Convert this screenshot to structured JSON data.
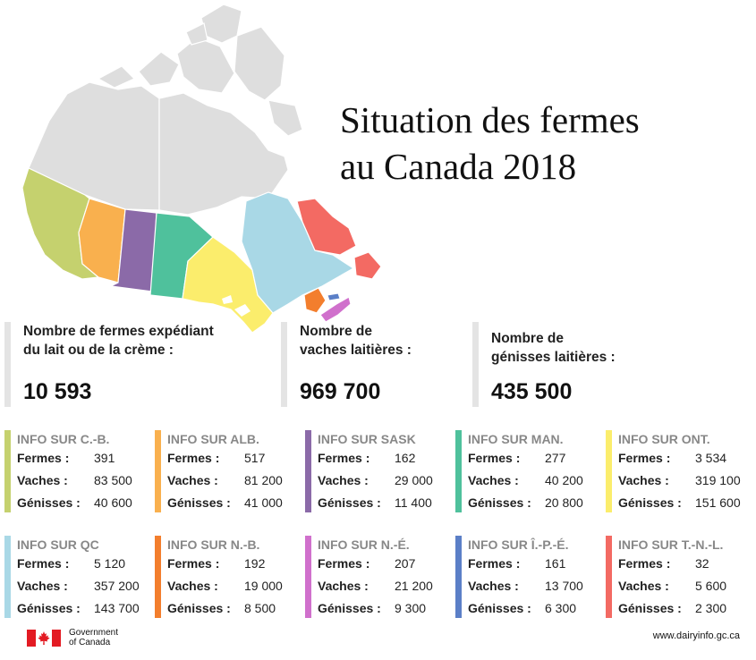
{
  "title_line1": "Situation des fermes",
  "title_line2": "au Canada 2018",
  "stats": [
    {
      "label_line1": "Nombre de fermes expédiant",
      "label_line2": "du lait ou de la crème :",
      "value": "10 593"
    },
    {
      "label_line1": "Nombre de",
      "label_line2": "vaches laitières :",
      "value": "969 700"
    },
    {
      "label_line1": "Nombre de",
      "label_line2": "génisses laitières :",
      "value": "435 500"
    }
  ],
  "row_labels": {
    "farms": "Fermes :",
    "cows": "Vaches :",
    "heifers": "Génisses :"
  },
  "provinces": [
    {
      "heading": "INFO SUR C.-B.",
      "farms": "391",
      "cows": "83 500",
      "heifers": "40 600",
      "color": "#c5d16e"
    },
    {
      "heading": "INFO SUR ALB.",
      "farms": "517",
      "cows": "81 200",
      "heifers": "41 000",
      "color": "#f9b04e"
    },
    {
      "heading": "INFO SUR SASK",
      "farms": "162",
      "cows": "29 000",
      "heifers": "11 400",
      "color": "#8b6aa8"
    },
    {
      "heading": "INFO SUR MAN.",
      "farms": "277",
      "cows": "40 200",
      "heifers": "20 800",
      "color": "#4fc19c"
    },
    {
      "heading": "INFO SUR ONT.",
      "farms": "3 534",
      "cows": "319 100",
      "heifers": "151 600",
      "color": "#fbed6c"
    },
    {
      "heading": "INFO SUR QC",
      "farms": "5 120",
      "cows": "357 200",
      "heifers": "143 700",
      "color": "#a9d8e6"
    },
    {
      "heading": "INFO SUR N.-B.",
      "farms": "192",
      "cows": "19 000",
      "heifers": "8 500",
      "color": "#f37e2d"
    },
    {
      "heading": "INFO SUR N.-É.",
      "farms": "207",
      "cows": "21 200",
      "heifers": "9 300",
      "color": "#d070cc"
    },
    {
      "heading": "INFO SUR Î.-P.-É.",
      "farms": "161",
      "cows": "13 700",
      "heifers": "6 300",
      "color": "#5b7fc7"
    },
    {
      "heading": "INFO SUR T.-N.-L.",
      "farms": "32",
      "cows": "5 600",
      "heifers": "2 300",
      "color": "#f36a63"
    }
  ],
  "footer": {
    "gov_line1": "Government",
    "gov_line2": "of Canada",
    "website": "www.dairyinfo.gc.ca"
  },
  "map_colors": {
    "territories": "#dedede",
    "great_lakes": "#ffffff"
  }
}
